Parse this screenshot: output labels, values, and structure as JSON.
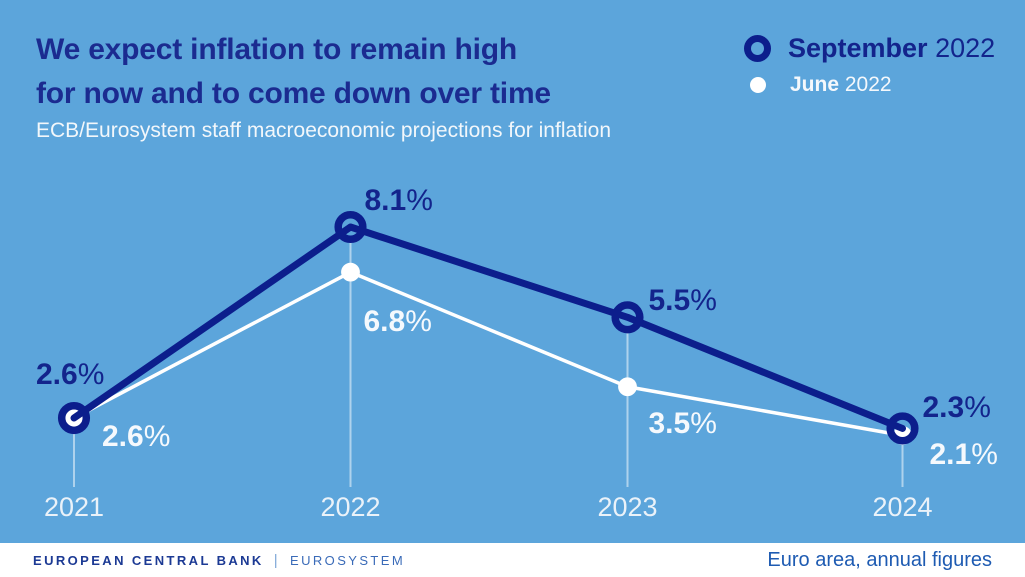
{
  "header": {
    "title_line1": "We expect inflation to remain high",
    "title_line2": "for now and to come down over time",
    "subtitle": "ECB/Eurosystem staff macroeconomic projections for inflation"
  },
  "legend": {
    "items": [
      {
        "label": "September",
        "year": "2022",
        "marker": "ring-icon"
      },
      {
        "label": "June",
        "year": "2022",
        "marker": "dot-icon"
      }
    ]
  },
  "chart_data": {
    "type": "line",
    "categories": [
      "2021",
      "2022",
      "2023",
      "2024"
    ],
    "series": [
      {
        "name": "September 2022",
        "color": "#0C1E8C",
        "marker": "ring",
        "values": [
          2.6,
          8.1,
          5.5,
          2.3
        ]
      },
      {
        "name": "June 2022",
        "color": "#FFFFFF",
        "marker": "dot",
        "values": [
          2.6,
          6.8,
          3.5,
          2.1
        ]
      }
    ],
    "value_suffix": "%",
    "title": "ECB/Eurosystem staff macroeconomic projections for inflation",
    "xlabel": "",
    "ylabel": "",
    "ylim": [
      1.5,
      9.0
    ],
    "grid": "vertical guide line under each data point",
    "legend_position": "top-right",
    "data_labels": "every point labelled with one-decimal percentage"
  },
  "footer": {
    "brand": "EUROPEAN CENTRAL BANK",
    "separator": "|",
    "brand_secondary": "EUROSYSTEM",
    "note": "Euro area, annual figures"
  },
  "colors": {
    "background": "#5CA5DB",
    "navy": "#0C1E8C",
    "title_navy": "#1B2B90",
    "white_series": "#FFFFFF",
    "guide_line": "rgba(255,255,255,0.5)",
    "footer_brand": "#1C3A94",
    "footer_secondary": "#3A6BB8",
    "footer_note": "#1E5BB2"
  }
}
